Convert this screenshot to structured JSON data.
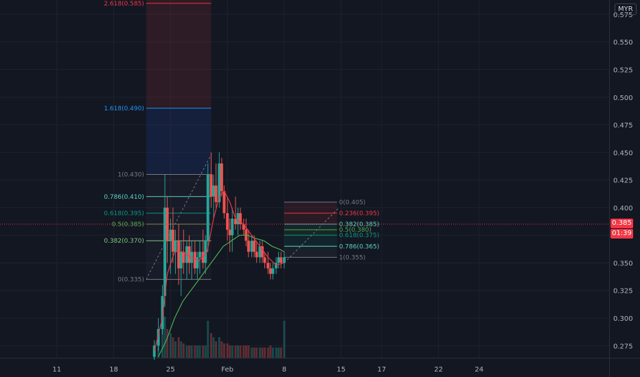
{
  "currency": "MYR",
  "last_price_label": "0.385",
  "countdown_label": "01:39",
  "colors": {
    "bg": "#131722",
    "grid": "#1e222d",
    "up": "#26a69a",
    "down": "#ef5350",
    "ema_fast": "#f23645",
    "ema_slow": "#4caf50",
    "price_line": "#f23645"
  },
  "chart_data": {
    "type": "candlestick",
    "y_ticks": [
      "0.575",
      "0.550",
      "0.525",
      "0.500",
      "0.475",
      "0.450",
      "0.425",
      "0.400",
      "0.375",
      "0.350",
      "0.325",
      "0.300",
      "0.275"
    ],
    "y_tick_values": [
      0.575,
      0.55,
      0.525,
      0.5,
      0.475,
      0.45,
      0.425,
      0.4,
      0.375,
      0.35,
      0.325,
      0.3,
      0.275
    ],
    "ylim": [
      0.264,
      0.588
    ],
    "x_ticks": [
      "11",
      "18",
      "25",
      "Feb",
      "8",
      "15",
      "17",
      "22",
      "24"
    ],
    "x_tick_days": [
      11,
      18,
      25,
      32,
      39,
      46,
      51,
      58,
      63
    ],
    "xlim": [
      4,
      79
    ],
    "current_price": 0.385,
    "fib_left": {
      "x_start": 22,
      "x_end": 30,
      "x_end_ext": 30,
      "levels": [
        {
          "label": "2.618(0.585)",
          "value": 0.585,
          "color": "#f23645"
        },
        {
          "label": "1.618(0.490)",
          "value": 0.49,
          "color": "#2196f3"
        },
        {
          "label": "1(0.430)",
          "value": 0.43,
          "color": "#787b86"
        },
        {
          "label": "0.786(0.410)",
          "value": 0.41,
          "color": "#5ad5c4"
        },
        {
          "label": "0.618(0.395)",
          "value": 0.395,
          "color": "#089981"
        },
        {
          "label": "0.5(0.385)",
          "value": 0.385,
          "color": "#4caf50"
        },
        {
          "label": "0.382(0.370)",
          "value": 0.37,
          "color": "#81c784"
        },
        {
          "label": "0(0.335)",
          "value": 0.335,
          "color": "#787b86"
        }
      ]
    },
    "fib_right": {
      "x_start": 39,
      "x_end": 45.5,
      "levels": [
        {
          "label": "0(0.405)",
          "value": 0.405,
          "color": "#787b86"
        },
        {
          "label": "0.236(0.395)",
          "value": 0.395,
          "color": "#f23645"
        },
        {
          "label": "0.382(0.385)",
          "value": 0.385,
          "color": "#5ad5c4"
        },
        {
          "label": "0.5(0.380)",
          "value": 0.38,
          "color": "#4caf50"
        },
        {
          "label": "0.618(0.375)",
          "value": 0.375,
          "color": "#089981"
        },
        {
          "label": "0.786(0.365)",
          "value": 0.365,
          "color": "#5ad5c4"
        },
        {
          "label": "1(0.355)",
          "value": 0.355,
          "color": "#787b86"
        }
      ]
    },
    "candles": [
      [
        23.0,
        0.265,
        0.28,
        0.262,
        0.275,
        0.3
      ],
      [
        23.5,
        0.275,
        0.3,
        0.27,
        0.29,
        0.6
      ],
      [
        24.0,
        0.29,
        0.33,
        0.285,
        0.32,
        0.9
      ],
      [
        24.3,
        0.32,
        0.43,
        0.31,
        0.4,
        1
      ],
      [
        24.6,
        0.4,
        0.41,
        0.35,
        0.37,
        0.7
      ],
      [
        25.0,
        0.37,
        0.39,
        0.34,
        0.38,
        0.6
      ],
      [
        25.3,
        0.38,
        0.4,
        0.35,
        0.36,
        0.5
      ],
      [
        25.6,
        0.36,
        0.38,
        0.34,
        0.37,
        0.4
      ],
      [
        26.0,
        0.37,
        0.385,
        0.33,
        0.345,
        0.5
      ],
      [
        26.3,
        0.345,
        0.37,
        0.32,
        0.36,
        0.4
      ],
      [
        26.6,
        0.36,
        0.38,
        0.34,
        0.35,
        0.35
      ],
      [
        27.0,
        0.35,
        0.37,
        0.335,
        0.365,
        0.3
      ],
      [
        27.3,
        0.365,
        0.375,
        0.34,
        0.35,
        0.3
      ],
      [
        27.6,
        0.35,
        0.37,
        0.335,
        0.36,
        0.3
      ],
      [
        28.0,
        0.36,
        0.37,
        0.34,
        0.345,
        0.3
      ],
      [
        28.3,
        0.345,
        0.36,
        0.335,
        0.355,
        0.3
      ],
      [
        28.6,
        0.355,
        0.37,
        0.34,
        0.36,
        0.3
      ],
      [
        29.0,
        0.36,
        0.38,
        0.345,
        0.35,
        0.3
      ],
      [
        29.3,
        0.35,
        0.375,
        0.34,
        0.37,
        0.3
      ],
      [
        29.6,
        0.37,
        0.44,
        0.36,
        0.43,
        0.9
      ],
      [
        30.0,
        0.43,
        0.45,
        0.4,
        0.41,
        0.6
      ],
      [
        30.3,
        0.41,
        0.43,
        0.39,
        0.42,
        0.5
      ],
      [
        30.6,
        0.42,
        0.44,
        0.4,
        0.405,
        0.4
      ],
      [
        31.0,
        0.405,
        0.45,
        0.4,
        0.44,
        0.5
      ],
      [
        31.3,
        0.44,
        0.445,
        0.41,
        0.415,
        0.4
      ],
      [
        31.6,
        0.415,
        0.42,
        0.39,
        0.395,
        0.35
      ],
      [
        32.0,
        0.395,
        0.41,
        0.37,
        0.38,
        0.35
      ],
      [
        32.3,
        0.38,
        0.39,
        0.36,
        0.375,
        0.3
      ],
      [
        32.6,
        0.375,
        0.4,
        0.36,
        0.39,
        0.3
      ],
      [
        33.0,
        0.39,
        0.41,
        0.38,
        0.385,
        0.3
      ],
      [
        33.3,
        0.385,
        0.4,
        0.375,
        0.395,
        0.3
      ],
      [
        33.6,
        0.395,
        0.4,
        0.38,
        0.385,
        0.3
      ],
      [
        34.0,
        0.385,
        0.39,
        0.375,
        0.38,
        0.3
      ],
      [
        34.3,
        0.38,
        0.39,
        0.365,
        0.37,
        0.3
      ],
      [
        34.6,
        0.37,
        0.38,
        0.355,
        0.36,
        0.3
      ],
      [
        35.0,
        0.36,
        0.375,
        0.355,
        0.37,
        0.25
      ],
      [
        35.3,
        0.37,
        0.375,
        0.355,
        0.36,
        0.25
      ],
      [
        35.6,
        0.36,
        0.37,
        0.35,
        0.355,
        0.25
      ],
      [
        36.0,
        0.355,
        0.37,
        0.35,
        0.365,
        0.25
      ],
      [
        36.3,
        0.365,
        0.37,
        0.35,
        0.355,
        0.25
      ],
      [
        36.6,
        0.355,
        0.36,
        0.345,
        0.35,
        0.25
      ],
      [
        37.0,
        0.35,
        0.36,
        0.34,
        0.345,
        0.25
      ],
      [
        37.3,
        0.345,
        0.35,
        0.335,
        0.34,
        0.3
      ],
      [
        37.6,
        0.34,
        0.35,
        0.335,
        0.345,
        0.25
      ],
      [
        38.0,
        0.345,
        0.355,
        0.34,
        0.35,
        0.25
      ],
      [
        38.3,
        0.35,
        0.36,
        0.345,
        0.355,
        0.25
      ],
      [
        38.6,
        0.355,
        0.36,
        0.345,
        0.35,
        0.25
      ],
      [
        39.0,
        0.35,
        0.36,
        0.345,
        0.355,
        0.9
      ]
    ],
    "ema_fast": [
      [
        23.0,
        0.27
      ],
      [
        24.0,
        0.3
      ],
      [
        24.6,
        0.34
      ],
      [
        25.5,
        0.36
      ],
      [
        26.5,
        0.36
      ],
      [
        27.5,
        0.355
      ],
      [
        28.5,
        0.352
      ],
      [
        29.5,
        0.36
      ],
      [
        30.3,
        0.39
      ],
      [
        31.0,
        0.41
      ],
      [
        31.6,
        0.415
      ],
      [
        32.3,
        0.405
      ],
      [
        33.0,
        0.39
      ],
      [
        34.0,
        0.385
      ],
      [
        35.0,
        0.375
      ],
      [
        36.0,
        0.365
      ],
      [
        37.0,
        0.355
      ],
      [
        38.0,
        0.348
      ],
      [
        39.0,
        0.35
      ]
    ],
    "ema_slow": [
      [
        23.5,
        0.265
      ],
      [
        24.5,
        0.28
      ],
      [
        25.5,
        0.3
      ],
      [
        26.5,
        0.315
      ],
      [
        27.5,
        0.325
      ],
      [
        28.5,
        0.335
      ],
      [
        29.5,
        0.345
      ],
      [
        30.5,
        0.355
      ],
      [
        31.5,
        0.365
      ],
      [
        32.5,
        0.37
      ],
      [
        33.5,
        0.375
      ],
      [
        34.5,
        0.375
      ],
      [
        35.5,
        0.372
      ],
      [
        36.5,
        0.37
      ],
      [
        37.5,
        0.365
      ],
      [
        38.5,
        0.362
      ],
      [
        39.0,
        0.36
      ]
    ]
  }
}
